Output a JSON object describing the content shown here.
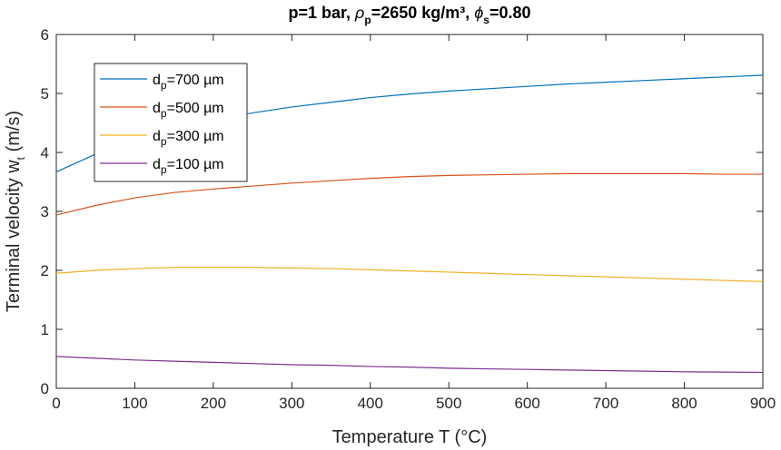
{
  "chart_data": {
    "type": "line",
    "title": {
      "prefix": "p=1 bar, ",
      "rho_symbol": "ρ",
      "rho_sub": "p",
      "rho_value": "=2650 kg/m³, ",
      "phi_symbol": "ϕ",
      "phi_sub": "s",
      "phi_value": "=0.80"
    },
    "xlabel": "Temperature T (°C)",
    "ylabel": {
      "main": "Terminal velocity w",
      "sub": "t",
      "unit": " (m/s)"
    },
    "xlim": [
      0,
      900
    ],
    "ylim": [
      0,
      6
    ],
    "xticks": [
      "0",
      "100",
      "200",
      "300",
      "400",
      "500",
      "600",
      "700",
      "800",
      "900"
    ],
    "yticks": [
      "0",
      "1",
      "2",
      "3",
      "4",
      "5",
      "6"
    ],
    "grid": false,
    "legend_position": "top-left",
    "x": [
      0,
      50,
      100,
      150,
      200,
      250,
      300,
      350,
      400,
      450,
      500,
      550,
      600,
      650,
      700,
      750,
      800,
      850,
      900
    ],
    "series": [
      {
        "name": {
          "symbol": "d",
          "sub": "p",
          "value": "=700 µm"
        },
        "color": "#0072BD",
        "values": [
          3.67,
          3.97,
          4.22,
          4.4,
          4.55,
          4.67,
          4.77,
          4.85,
          4.93,
          4.99,
          5.04,
          5.08,
          5.12,
          5.16,
          5.19,
          5.22,
          5.25,
          5.28,
          5.31
        ]
      },
      {
        "name": {
          "symbol": "d",
          "sub": "p",
          "value": "=500 µm"
        },
        "color": "#D95319",
        "values": [
          2.94,
          3.1,
          3.23,
          3.32,
          3.38,
          3.43,
          3.48,
          3.52,
          3.56,
          3.59,
          3.61,
          3.62,
          3.63,
          3.64,
          3.64,
          3.64,
          3.64,
          3.63,
          3.63
        ]
      },
      {
        "name": {
          "symbol": "d",
          "sub": "p",
          "value": "=300 µm"
        },
        "color": "#EDB120",
        "values": [
          1.95,
          2.0,
          2.03,
          2.05,
          2.05,
          2.05,
          2.04,
          2.03,
          2.01,
          1.99,
          1.97,
          1.95,
          1.93,
          1.91,
          1.89,
          1.87,
          1.85,
          1.83,
          1.81
        ]
      },
      {
        "name": {
          "symbol": "d",
          "sub": "p",
          "value": "=100 µm"
        },
        "color": "#7E2F8E",
        "values": [
          0.54,
          0.51,
          0.48,
          0.46,
          0.44,
          0.42,
          0.4,
          0.39,
          0.37,
          0.36,
          0.34,
          0.33,
          0.32,
          0.31,
          0.3,
          0.29,
          0.28,
          0.275,
          0.27
        ]
      }
    ]
  }
}
